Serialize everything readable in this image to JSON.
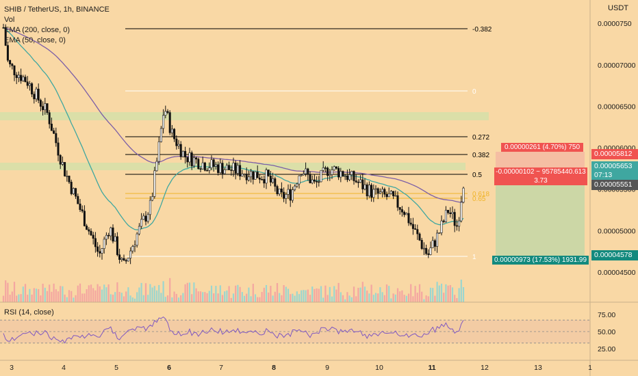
{
  "header": {
    "symbol_line": "SHIB / TetherUS, 1h, BINANCE",
    "indicators": [
      "Vol",
      "EMA (200, close, 0)",
      "EMA (50, close, 0)"
    ]
  },
  "rsi": {
    "label": "RSI (14, close)",
    "levels": [
      70,
      50,
      30
    ],
    "ticks": [
      "75.00",
      "50.00",
      "25.00"
    ]
  },
  "axis": {
    "unit": "USDT",
    "price_ticks": [
      "0.0000750",
      "0.00007000",
      "0.00006500",
      "0.00006000",
      "0.00005500",
      "0.00005000",
      "0.00004500"
    ],
    "date_ticks": [
      "3",
      "4",
      "5",
      "6",
      "7",
      "8",
      "9",
      "10",
      "11",
      "12",
      "13",
      "1"
    ]
  },
  "fib_levels": [
    {
      "label": "-0.382",
      "color": "#000000"
    },
    {
      "label": "0",
      "color": "#ffffff"
    },
    {
      "label": "0.272",
      "color": "#000000"
    },
    {
      "label": "0.382",
      "color": "#000000"
    },
    {
      "label": "0.5",
      "color": "#000000"
    },
    {
      "label": "0.618",
      "color": "#f0b429"
    },
    {
      "label": "0.65",
      "color": "#f0b429"
    },
    {
      "label": "1",
      "color": "#ffffff"
    }
  ],
  "position": {
    "target_label": "0.00000261 (4.70%) 750",
    "mid_label_line1": "-0.00000102 ~ 95785440.613",
    "mid_label_line2": "3.73",
    "stop_label": "0.00000973 (17.53%) 1931.99"
  },
  "price_tags": {
    "target": "0.00005812",
    "current": "0.00005653",
    "countdown": "07:13",
    "entry": "0.00005551",
    "stop": "0.00004578"
  },
  "colors": {
    "up": "#ffffff",
    "down": "#111111",
    "ema200": "#7b5ea7",
    "ema50": "#3fa7a0",
    "zone": "#d6e0a8",
    "target_red": "#f05350",
    "stop_teal": "#138a7e",
    "rsi_line": "#7e57c2",
    "vol_up": "#9bd6cf",
    "vol_down": "#f4a6a1"
  },
  "chart_data": {
    "type": "candlestick",
    "title": "SHIB / TetherUS, 1h, BINANCE",
    "y_unit": "USDT",
    "ylim": [
      4.4e-05,
      7.7e-05
    ],
    "x_ticks": [
      "3",
      "4",
      "5",
      "6",
      "7",
      "8",
      "9",
      "10",
      "11",
      "12",
      "13",
      "1"
    ],
    "key_points": [
      {
        "x": "3",
        "close": 7.2e-05
      },
      {
        "x": "4",
        "close": 5.75e-05
      },
      {
        "x": "5",
        "close": 4.8e-05
      },
      {
        "x": "6",
        "close": 6.15e-05
      },
      {
        "x": "7",
        "close": 5.75e-05
      },
      {
        "x": "8",
        "close": 5.6e-05
      },
      {
        "x": "9",
        "close": 5.65e-05
      },
      {
        "x": "10",
        "close": 5.45e-05
      },
      {
        "x": "11",
        "close": 4.9e-05
      },
      {
        "x": "11",
        "close": 5.65e-05
      }
    ],
    "fib_retracement": {
      "0": 6.6e-05,
      "0.272": 6e-05,
      "0.382": 5.78e-05,
      "0.5": 5.51e-05,
      "0.618": 5.28e-05,
      "0.65": 5.21e-05,
      "1": 4.5e-05,
      "-0.382": 7.46e-05
    },
    "rsi": {
      "label": "RSI (14, close)",
      "ylim": [
        0,
        100
      ],
      "last": 70
    }
  }
}
